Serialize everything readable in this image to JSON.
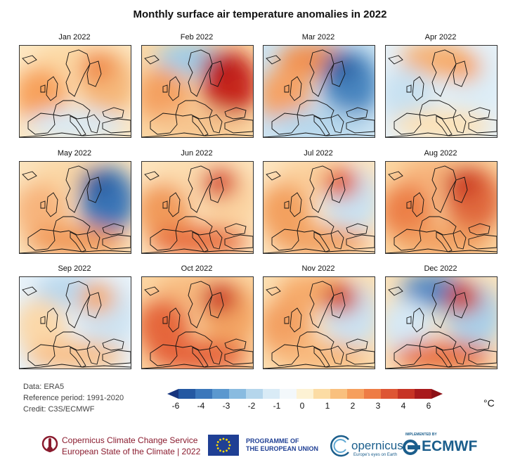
{
  "title": "Monthly surface air temperature anomalies in 2022",
  "panels": [
    {
      "label": "Jan 2022",
      "colors": {
        "west": "#f7a15c",
        "east": "#f5b87a",
        "north": "#fcd9a5",
        "south": "#d9eaf5",
        "sea": "#fde7c2",
        "hot": "#f08a4a"
      }
    },
    {
      "label": "Feb 2022",
      "colors": {
        "west": "#f4a060",
        "east": "#c7271f",
        "north": "#9ecde9",
        "south": "#f6c48e",
        "sea": "#fbd8a6",
        "hot": "#b81e1a"
      }
    },
    {
      "label": "Mar 2022",
      "colors": {
        "west": "#f5a265",
        "east": "#4a86c0",
        "north": "#f19050",
        "south": "#b6d7ec",
        "sea": "#cde4f2",
        "hot": "#2e63a5"
      }
    },
    {
      "label": "Apr 2022",
      "colors": {
        "west": "#c8e1f1",
        "east": "#dcedf7",
        "north": "#f6b071",
        "south": "#fde1b4",
        "sea": "#e6f1f8",
        "hot": "#f7a45e"
      }
    },
    {
      "label": "May 2022",
      "colors": {
        "west": "#f7b47c",
        "east": "#3a76b8",
        "north": "#fbd7a5",
        "south": "#f19a5a",
        "sea": "#fbe3bd",
        "hot": "#2d5fa0"
      }
    },
    {
      "label": "Jun 2022",
      "colors": {
        "west": "#f19a5a",
        "east": "#fbd3a0",
        "north": "#fcdcae",
        "south": "#e87040",
        "sea": "#fde4bd",
        "hot": "#d94a2e"
      }
    },
    {
      "label": "Jul 2022",
      "colors": {
        "west": "#f3a05e",
        "east": "#c9e2f2",
        "north": "#fbd09c",
        "south": "#f2a162",
        "sea": "#fde5c0",
        "hot": "#e25a36"
      }
    },
    {
      "label": "Aug 2022",
      "colors": {
        "west": "#ec7f46",
        "east": "#e0693d",
        "north": "#f7b47c",
        "south": "#f2a062",
        "sea": "#fbd6a2",
        "hot": "#cc3a24"
      }
    },
    {
      "label": "Sep 2022",
      "colors": {
        "west": "#fbd8a9",
        "east": "#cde3f2",
        "north": "#b8d8ee",
        "south": "#f8c08a",
        "sea": "#e9f3fa",
        "hot": "#f4a868"
      }
    },
    {
      "label": "Oct 2022",
      "colors": {
        "west": "#e5663a",
        "east": "#f3a464",
        "north": "#f8bb80",
        "south": "#e5623a",
        "sea": "#fcd6a3",
        "hot": "#cc3620"
      }
    },
    {
      "label": "Nov 2022",
      "colors": {
        "west": "#f3a062",
        "east": "#cbe2f2",
        "north": "#f6ab6b",
        "south": "#f8b87b",
        "sea": "#fce0b4",
        "hot": "#d24a2c"
      }
    },
    {
      "label": "Dec 2022",
      "colors": {
        "west": "#d5e8f5",
        "east": "#a9d0ea",
        "north": "#4f86c2",
        "south": "#e8713f",
        "sea": "#fce3bb",
        "hot": "#cc3a24"
      }
    }
  ],
  "meta": {
    "data": "Data: ERA5",
    "reference": "Reference period: 1991-2020",
    "credit": "Credit: C3S/ECMWF"
  },
  "colorbar": {
    "colors": [
      "#16357e",
      "#2458a2",
      "#3b77bb",
      "#5b98cf",
      "#89bbe0",
      "#b5d6ec",
      "#d9ebf6",
      "#f3f8fb",
      "#fdf2d4",
      "#fcdca4",
      "#f9c07e",
      "#f69f5d",
      "#ee7c45",
      "#de5634",
      "#c73425",
      "#a81a1c",
      "#8c1016"
    ],
    "tick_labels": [
      "-6",
      "-4",
      "-3",
      "-2",
      "-1",
      "0",
      "1",
      "2",
      "3",
      "4",
      "6"
    ],
    "unit": "°C"
  },
  "footer": {
    "c3s_line1": "Copernicus Climate Change Service",
    "c3s_line2": "European State of the Climate | 2022",
    "eu_line1": "PROGRAMME OF",
    "eu_line2": "THE EUROPEAN UNION",
    "copernicus": "opernicus",
    "copernicus_sub": "Europe's eyes on Earth",
    "ecmwf_implemented": "IMPLEMENTED BY",
    "ecmwf": "ECMWF"
  }
}
